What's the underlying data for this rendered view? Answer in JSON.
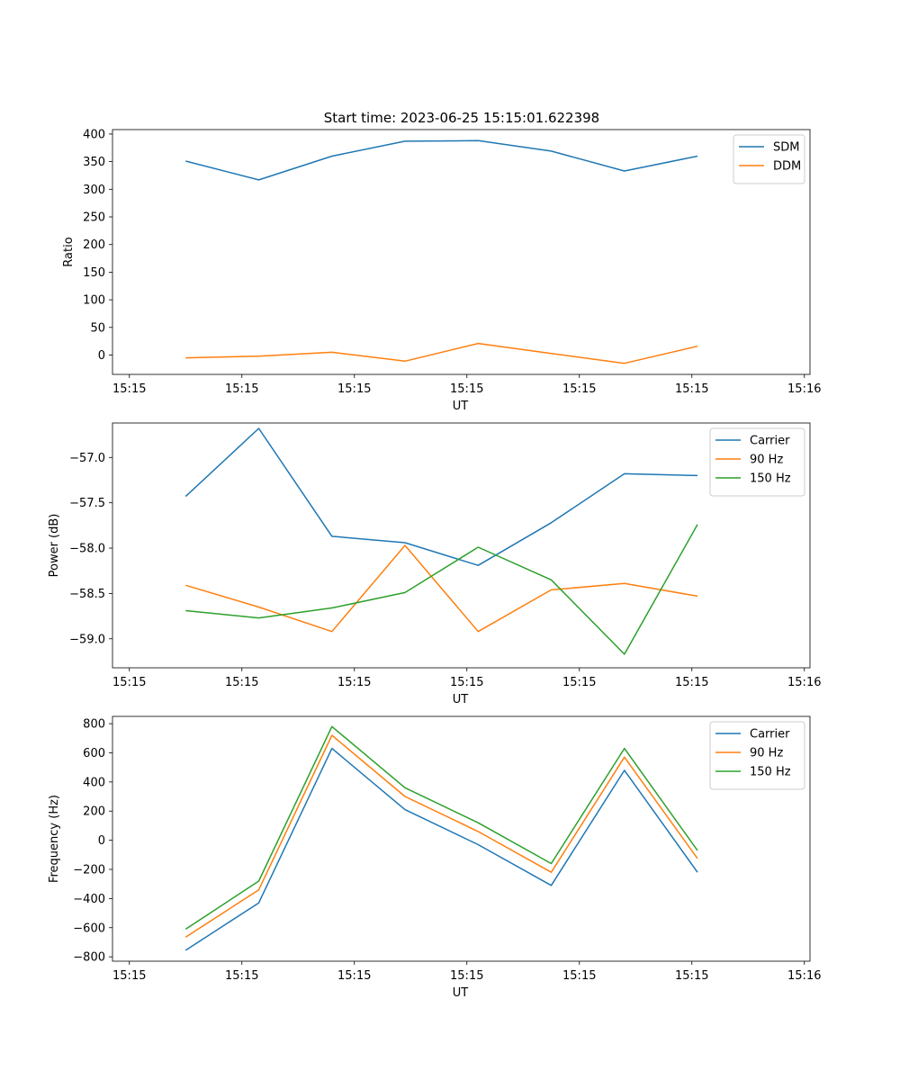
{
  "figure": {
    "title": "Start time: 2023-06-25 15:15:01.622398"
  },
  "chart_data": [
    {
      "type": "line",
      "xlabel": "UT",
      "ylabel": "Ratio",
      "x_tick_labels": [
        "15:15",
        "15:15",
        "15:15",
        "15:15",
        "15:15",
        "15:15",
        "15:16"
      ],
      "x_tick_seconds": [
        0,
        10,
        20,
        30,
        40,
        50,
        60
      ],
      "x_seconds": [
        5,
        11.5,
        18,
        24.5,
        31,
        37.5,
        44,
        50.5
      ],
      "ylim": [
        -35,
        408
      ],
      "yticks": [
        0,
        50,
        100,
        150,
        200,
        250,
        300,
        350,
        400
      ],
      "legend": "top-right",
      "series": [
        {
          "name": "SDM",
          "color": "#1f77b4",
          "values": [
            351,
            317,
            360,
            387,
            388,
            369,
            333,
            360
          ]
        },
        {
          "name": "DDM",
          "color": "#ff7f0e",
          "values": [
            -5,
            -2,
            5,
            -11,
            21,
            3,
            -15,
            16
          ]
        }
      ]
    },
    {
      "type": "line",
      "xlabel": "UT",
      "ylabel": "Power (dB)",
      "x_tick_labels": [
        "15:15",
        "15:15",
        "15:15",
        "15:15",
        "15:15",
        "15:15",
        "15:16"
      ],
      "x_tick_seconds": [
        0,
        10,
        20,
        30,
        40,
        50,
        60
      ],
      "x_seconds": [
        5,
        11.5,
        18,
        24.5,
        31,
        37.5,
        44,
        50.5
      ],
      "ylim": [
        -59.32,
        -56.62
      ],
      "yticks": [
        -59.0,
        -58.5,
        -58.0,
        -57.5,
        -57.0
      ],
      "ytick_labels": [
        "−59.0",
        "−58.5",
        "−58.0",
        "−57.5",
        "−57.0"
      ],
      "legend": "top-right",
      "series": [
        {
          "name": "Carrier",
          "color": "#1f77b4",
          "values": [
            -57.43,
            -56.68,
            -57.87,
            -57.94,
            -58.19,
            -57.72,
            -57.18,
            -57.2
          ]
        },
        {
          "name": "90 Hz",
          "color": "#ff7f0e",
          "values": [
            -58.41,
            -58.65,
            -58.92,
            -57.97,
            -58.92,
            -58.46,
            -58.39,
            -58.53
          ]
        },
        {
          "name": "150 Hz",
          "color": "#2ca02c",
          "values": [
            -58.69,
            -58.77,
            -58.66,
            -58.49,
            -57.99,
            -58.35,
            -59.17,
            -57.74
          ]
        }
      ]
    },
    {
      "type": "line",
      "xlabel": "UT",
      "ylabel": "Frequency (Hz)",
      "x_tick_labels": [
        "15:15",
        "15:15",
        "15:15",
        "15:15",
        "15:15",
        "15:15",
        "15:16"
      ],
      "x_tick_seconds": [
        0,
        10,
        20,
        30,
        40,
        50,
        60
      ],
      "x_seconds": [
        5,
        11.5,
        18,
        24.5,
        31,
        37.5,
        44,
        50.5
      ],
      "ylim": [
        -830,
        850
      ],
      "yticks": [
        -800,
        -600,
        -400,
        -200,
        0,
        200,
        400,
        600,
        800
      ],
      "ytick_labels": [
        "−800",
        "−600",
        "−400",
        "−200",
        "0",
        "200",
        "400",
        "600",
        "800"
      ],
      "legend": "top-right",
      "series": [
        {
          "name": "Carrier",
          "color": "#1f77b4",
          "values": [
            -755,
            -430,
            630,
            210,
            -30,
            -310,
            480,
            -220
          ]
        },
        {
          "name": "90 Hz",
          "color": "#ff7f0e",
          "values": [
            -665,
            -340,
            720,
            300,
            60,
            -220,
            570,
            -125
          ]
        },
        {
          "name": "150 Hz",
          "color": "#2ca02c",
          "values": [
            -610,
            -280,
            780,
            360,
            120,
            -160,
            630,
            -70
          ]
        }
      ]
    }
  ]
}
